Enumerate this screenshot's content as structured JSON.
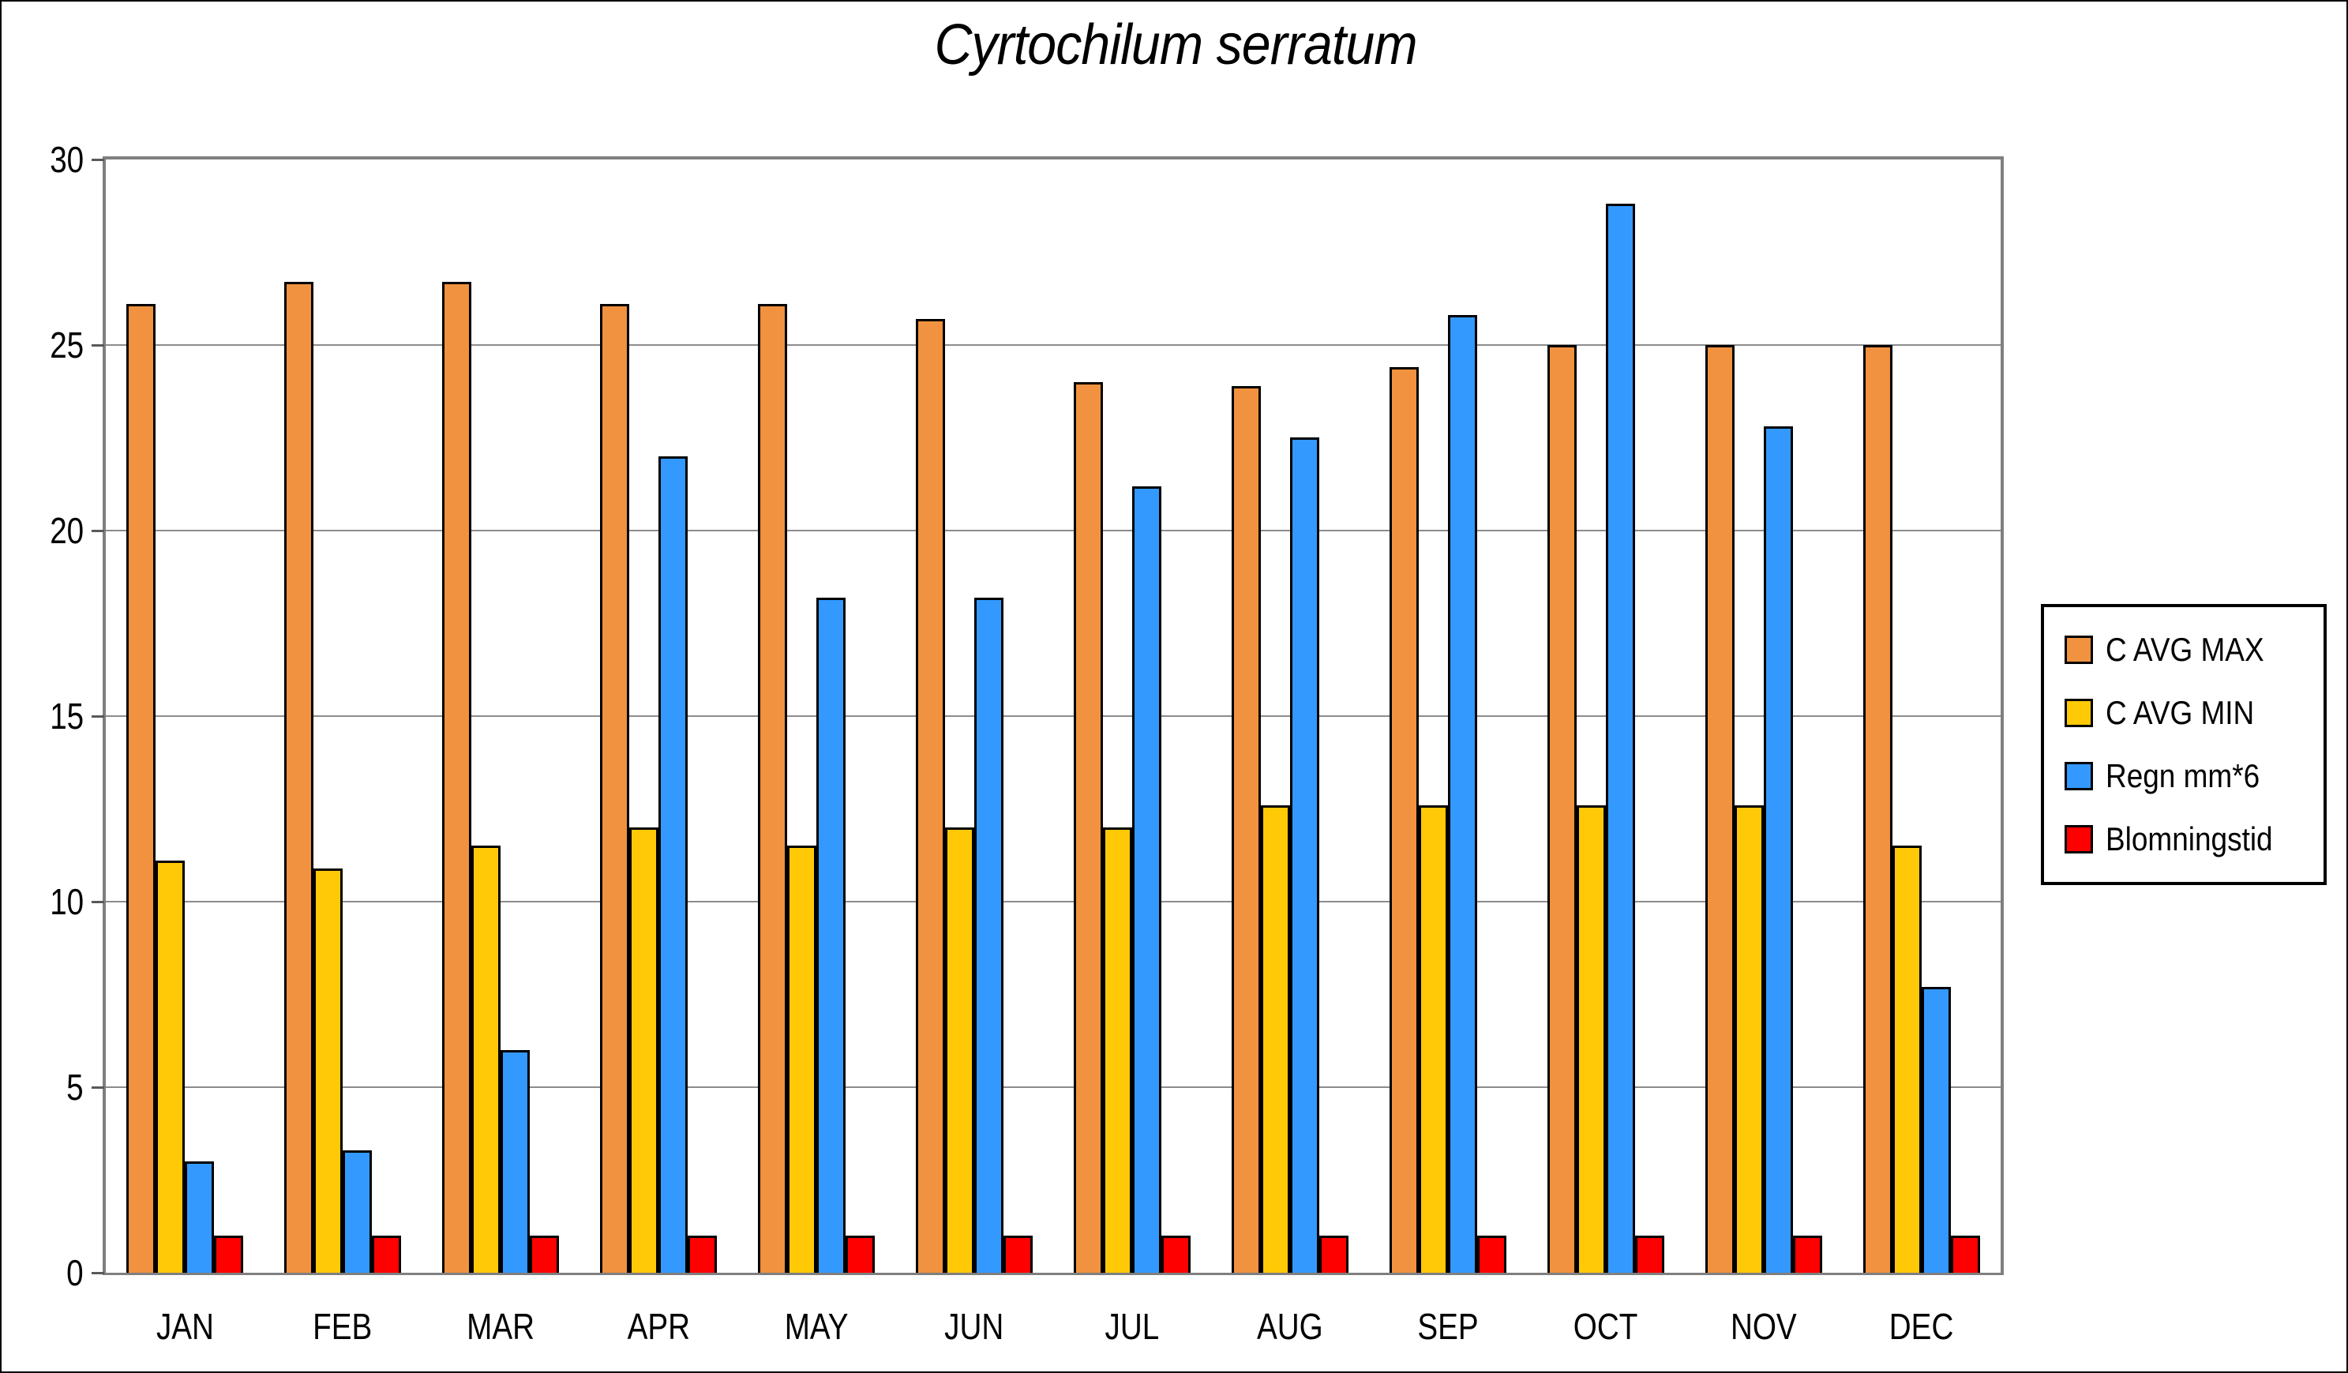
{
  "chart_data": {
    "type": "bar",
    "title": "Cyrtochilum serratum",
    "categories": [
      "JAN",
      "FEB",
      "MAR",
      "APR",
      "MAY",
      "JUN",
      "JUL",
      "AUG",
      "SEP",
      "OCT",
      "NOV",
      "DEC"
    ],
    "series": [
      {
        "name": "C AVG MAX",
        "color": "#F0923F",
        "values": [
          26.1,
          26.7,
          26.7,
          26.1,
          26.1,
          25.7,
          24.0,
          23.9,
          24.4,
          25.0,
          25.0,
          25.0
        ]
      },
      {
        "name": "C AVG MIN",
        "color": "#FFC907",
        "values": [
          11.1,
          10.9,
          11.5,
          12.0,
          11.5,
          12.0,
          12.0,
          12.6,
          12.6,
          12.6,
          12.6,
          11.5
        ]
      },
      {
        "name": "Regn mm*6",
        "color": "#3399FF",
        "values": [
          3.0,
          3.3,
          6.0,
          22.0,
          18.2,
          18.2,
          21.2,
          22.5,
          25.8,
          28.8,
          22.8,
          7.7
        ]
      },
      {
        "name": "Blomningstid",
        "color": "#FF0000",
        "values": [
          1.0,
          1.0,
          1.0,
          1.0,
          1.0,
          1.0,
          1.0,
          1.0,
          1.0,
          1.0,
          1.0,
          1.0
        ]
      }
    ],
    "xlabel": "",
    "ylabel": "",
    "ylim": [
      0,
      30
    ],
    "yticks": [
      0,
      5,
      10,
      15,
      20,
      25,
      30
    ],
    "grid": true,
    "legend_position": "right",
    "bar_border_color": "#000000",
    "gridline_color": "#8C8C8C",
    "tick_color": "#595959",
    "axis_frame_color": "#7F7F7F"
  }
}
